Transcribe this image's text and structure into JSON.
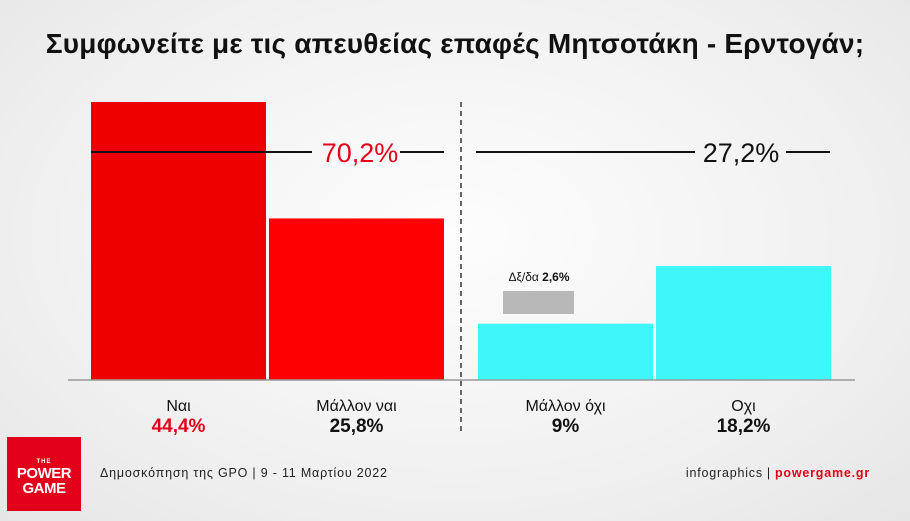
{
  "chart_data": {
    "type": "bar",
    "title": "Συμφωνείτε με τις απευθείας επαφές Μητσοτάκη - Ερντογάν;",
    "categories": [
      "Ναι",
      "Μάλλον ναι",
      "Μάλλον όχι",
      "Οχι"
    ],
    "values": [
      44.4,
      25.8,
      9,
      18.2
    ],
    "value_labels": [
      "44,4%",
      "25,8%",
      "9%",
      "18,2%"
    ],
    "colors": [
      "#ee0000",
      "#ff0000",
      "#3ff7fb",
      "#3ff7fb"
    ],
    "value_label_colors": [
      "#e3001b",
      "#111111",
      "#111111",
      "#111111"
    ],
    "groups": [
      {
        "label": "70,2%",
        "value": 70.2,
        "color": "#e3001b"
      },
      {
        "label": "27,2%",
        "value": 27.2,
        "color": "#111111"
      }
    ],
    "dk": {
      "label": "Δξ/δα",
      "value_label": "2,6%",
      "value": 2.6,
      "color": "#b8b8b8"
    },
    "ylim": [
      0,
      48
    ]
  },
  "footer": {
    "source": "Δημοσκόπηση της GPO | 9 - 11 Μαρτίου 2022",
    "infographics": "infographics",
    "separator": "|",
    "site": "powergame.gr"
  },
  "logo": {
    "the": "THE",
    "line1": "POWER",
    "line2": "GAME"
  }
}
